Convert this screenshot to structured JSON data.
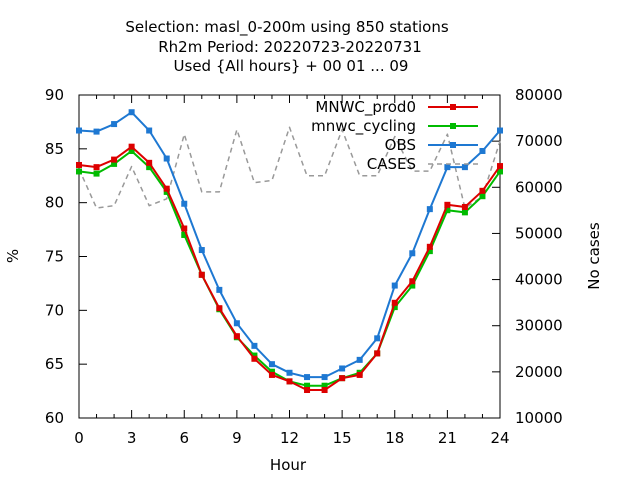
{
  "chart_data": {
    "type": "line",
    "title_lines": [
      "Selection: masl_0-200m using   850 stations",
      "Rh2m   Period: 20220723-20220731",
      "Used {All hours} + 00 01 ... 09"
    ],
    "xlabel": "Hour",
    "ylabel": "%",
    "y2label": "No cases",
    "xlim": [
      0,
      24
    ],
    "ylim": [
      60,
      90
    ],
    "y2lim": [
      10000,
      80000
    ],
    "xticks": [
      0,
      3,
      6,
      9,
      12,
      15,
      18,
      21,
      24
    ],
    "yticks": [
      60,
      65,
      70,
      75,
      80,
      85,
      90
    ],
    "y2ticks": [
      10000,
      20000,
      30000,
      40000,
      50000,
      60000,
      70000,
      80000
    ],
    "grid": false,
    "legend_position": "top-right",
    "x": [
      0,
      1,
      2,
      3,
      4,
      5,
      6,
      7,
      8,
      9,
      10,
      11,
      12,
      13,
      14,
      15,
      16,
      17,
      18,
      19,
      20,
      21,
      22,
      23,
      24
    ],
    "series": [
      {
        "name": "MNWC_prod0",
        "color": "#dd0000",
        "axis": "y",
        "values": [
          83.5,
          83.3,
          84.0,
          85.2,
          83.7,
          81.3,
          77.6,
          73.3,
          70.2,
          67.6,
          65.5,
          64.0,
          63.4,
          62.6,
          62.6,
          63.7,
          64.0,
          66.0,
          70.7,
          72.7,
          75.9,
          79.8,
          79.6,
          81.1,
          83.4
        ]
      },
      {
        "name": "mnwc_cycling",
        "color": "#00bb00",
        "axis": "y",
        "values": [
          82.9,
          82.7,
          83.6,
          84.8,
          83.3,
          81.0,
          77.0,
          73.3,
          70.1,
          67.5,
          65.8,
          64.3,
          63.4,
          63.0,
          63.0,
          63.7,
          64.2,
          66.0,
          70.3,
          72.3,
          75.5,
          79.3,
          79.1,
          80.6,
          82.9
        ]
      },
      {
        "name": "OBS",
        "color": "#1e78d2",
        "axis": "y",
        "values": [
          86.7,
          86.6,
          87.3,
          88.4,
          86.7,
          84.1,
          79.9,
          75.6,
          71.9,
          68.8,
          66.7,
          65.0,
          64.2,
          63.8,
          63.8,
          64.6,
          65.4,
          67.4,
          72.3,
          75.3,
          79.4,
          83.3,
          83.3,
          84.8,
          86.7
        ]
      },
      {
        "name": "CASES",
        "color": "#999999",
        "axis": "y2",
        "dashed": true,
        "values": [
          64000,
          55500,
          56000,
          64500,
          56000,
          57500,
          71500,
          59000,
          59000,
          72500,
          61000,
          61500,
          73000,
          62500,
          62500,
          72500,
          62500,
          62500,
          71000,
          63500,
          63500,
          71500,
          55500,
          58000,
          70000
        ]
      }
    ]
  }
}
